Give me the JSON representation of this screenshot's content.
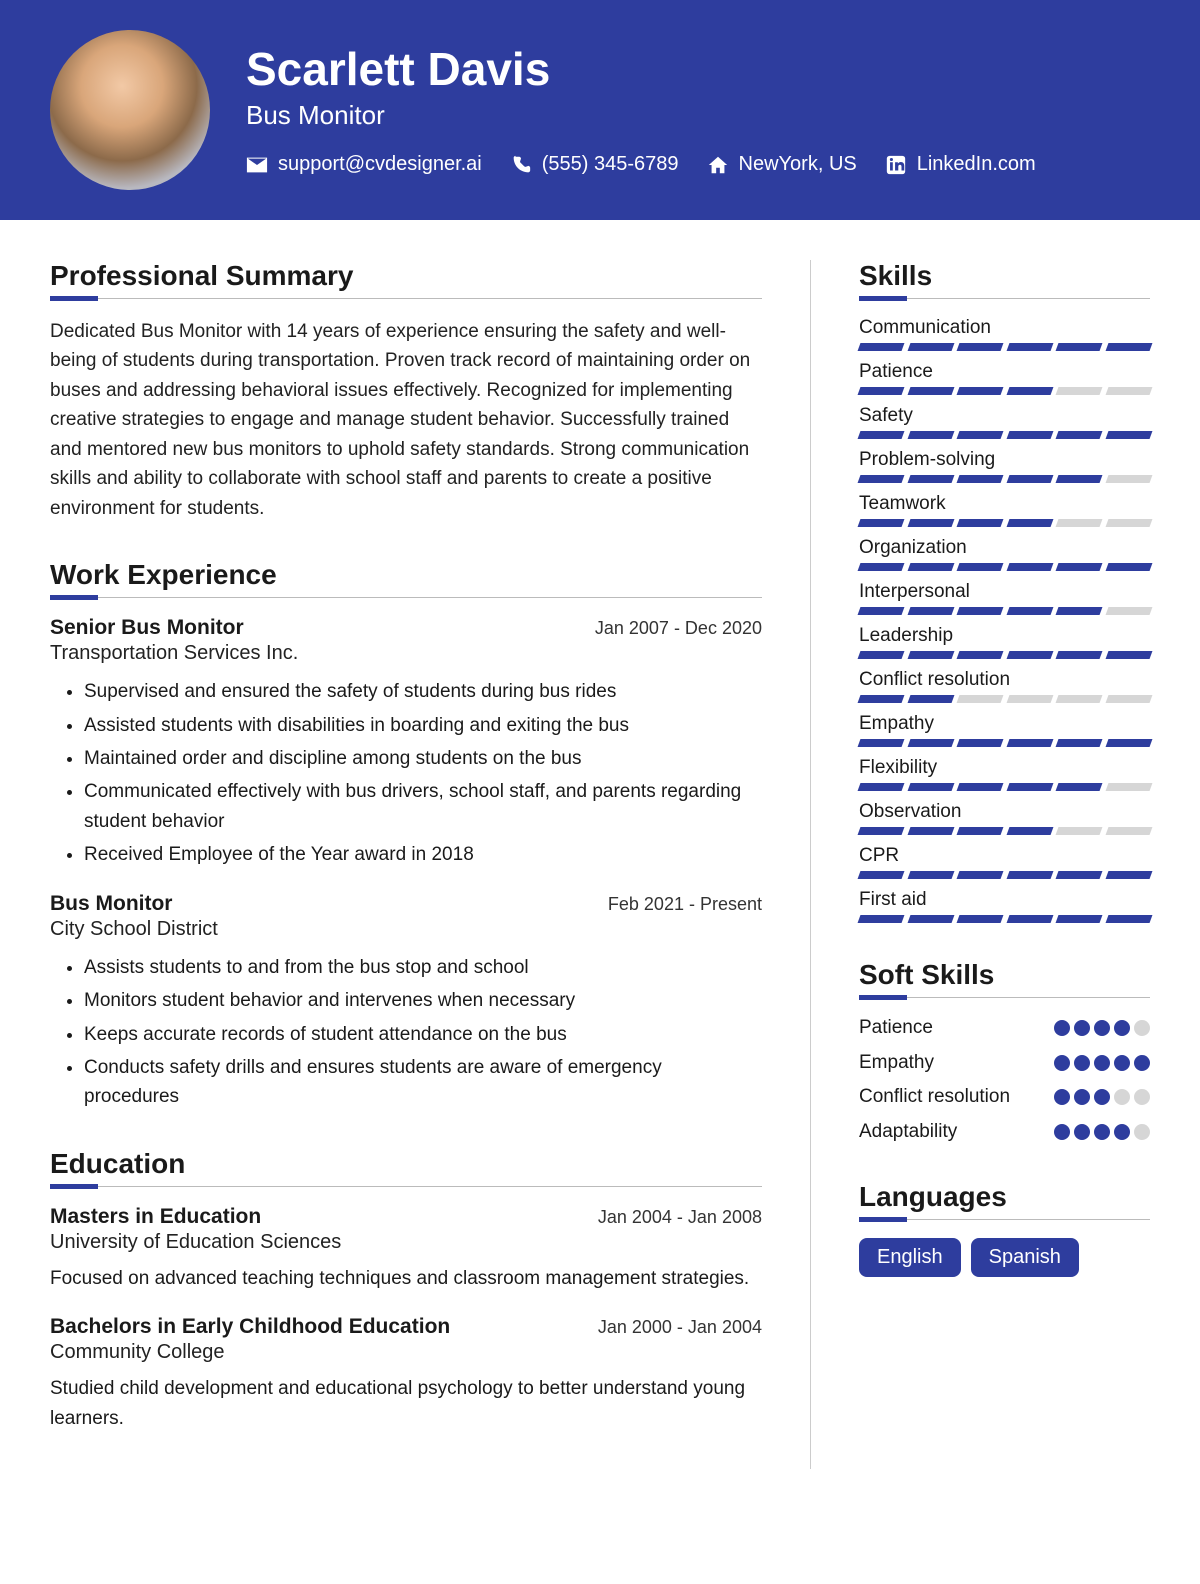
{
  "colors": {
    "primary": "#2e3d9e",
    "text": "#1a1a1a",
    "muted_bar": "#d6d6d6",
    "rule": "#bbb"
  },
  "header": {
    "name": "Scarlett Davis",
    "title": "Bus Monitor",
    "contacts": {
      "email": "support@cvdesigner.ai",
      "phone": "(555) 345-6789",
      "location": "NewYork, US",
      "linkedin": "LinkedIn.com"
    }
  },
  "sections": {
    "summary_title": "Professional Summary",
    "work_title": "Work Experience",
    "education_title": "Education",
    "skills_title": "Skills",
    "softskills_title": "Soft Skills",
    "languages_title": "Languages"
  },
  "summary": "Dedicated Bus Monitor with 14 years of experience ensuring the safety and well-being of students during transportation. Proven track record of maintaining order on buses and addressing behavioral issues effectively. Recognized for implementing creative strategies to engage and manage student behavior. Successfully trained and mentored new bus monitors to uphold safety standards. Strong communication skills and ability to collaborate with school staff and parents to create a positive environment for students.",
  "work": [
    {
      "title": "Senior Bus Monitor",
      "dates": "Jan 2007 - Dec 2020",
      "company": "Transportation Services Inc.",
      "bullets": [
        "Supervised and ensured the safety of students during bus rides",
        "Assisted students with disabilities in boarding and exiting the bus",
        "Maintained order and discipline among students on the bus",
        "Communicated effectively with bus drivers, school staff, and parents regarding student behavior",
        "Received Employee of the Year award in 2018"
      ]
    },
    {
      "title": "Bus Monitor",
      "dates": "Feb 2021 - Present",
      "company": "City School District",
      "bullets": [
        "Assists students to and from the bus stop and school",
        "Monitors student behavior and intervenes when necessary",
        "Keeps accurate records of student attendance on the bus",
        "Conducts safety drills and ensures students are aware of emergency procedures"
      ]
    }
  ],
  "education": [
    {
      "title": "Masters in Education",
      "dates": "Jan 2004 - Jan 2008",
      "school": "University of Education Sciences",
      "desc": "Focused on advanced teaching techniques and classroom management strategies."
    },
    {
      "title": "Bachelors in Early Childhood Education",
      "dates": "Jan 2000 - Jan 2004",
      "school": "Community College",
      "desc": "Studied child development and educational psychology to better understand young learners."
    }
  ],
  "skills": {
    "segments": 6,
    "items": [
      {
        "name": "Communication",
        "level": 6
      },
      {
        "name": "Patience",
        "level": 4
      },
      {
        "name": "Safety",
        "level": 6
      },
      {
        "name": "Problem-solving",
        "level": 5
      },
      {
        "name": "Teamwork",
        "level": 4
      },
      {
        "name": "Organization",
        "level": 6
      },
      {
        "name": "Interpersonal",
        "level": 5
      },
      {
        "name": "Leadership",
        "level": 6
      },
      {
        "name": "Conflict resolution",
        "level": 2
      },
      {
        "name": "Empathy",
        "level": 6
      },
      {
        "name": "Flexibility",
        "level": 5
      },
      {
        "name": "Observation",
        "level": 4
      },
      {
        "name": "CPR",
        "level": 6
      },
      {
        "name": "First aid",
        "level": 6
      }
    ]
  },
  "softskills": {
    "max": 5,
    "items": [
      {
        "name": "Patience",
        "level": 4
      },
      {
        "name": "Empathy",
        "level": 5
      },
      {
        "name": "Conflict resolution",
        "level": 3
      },
      {
        "name": "Adaptability",
        "level": 4
      }
    ]
  },
  "languages": [
    "English",
    "Spanish"
  ]
}
